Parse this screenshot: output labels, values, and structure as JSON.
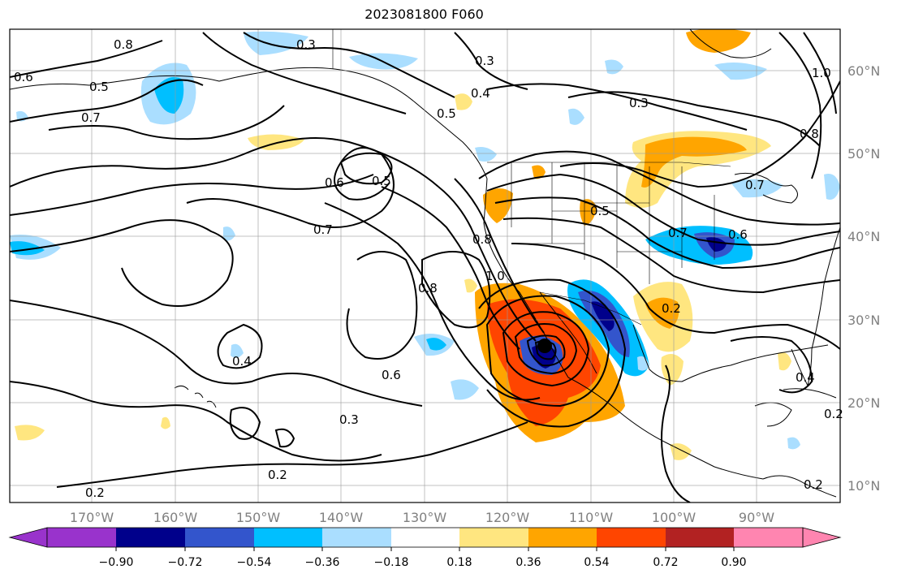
{
  "title": "2023081800 F060",
  "map": {
    "lon_range": [
      -180,
      -80
    ],
    "lat_range": [
      8,
      65
    ],
    "gridlines": true,
    "lon_ticks": [
      "170°W",
      "160°W",
      "150°W",
      "140°W",
      "130°W",
      "120°W",
      "110°W",
      "100°W",
      "90°W"
    ],
    "lat_ticks": [
      "60°N",
      "50°N",
      "40°N",
      "30°N",
      "20°N",
      "10°N"
    ],
    "storm_center_marker": {
      "lon": -115.5,
      "lat": 26.8
    },
    "contour_labels": [
      "0.8",
      "0.3",
      "0.6",
      "0.5",
      "0.7",
      "0.3",
      "0.4",
      "0.5",
      "0.3",
      "1.0",
      "0.8",
      "0.6",
      "0.5",
      "0.7",
      "0.5",
      "0.7",
      "0.7",
      "0.6",
      "0.8",
      "0.8",
      "1.0",
      "0.2",
      "0.4",
      "0.6",
      "0.3",
      "0.2",
      "0.2",
      "0.4",
      "0.2",
      "0.2"
    ]
  },
  "colorbar": {
    "tick_labels": [
      "−0.90",
      "−0.72",
      "−0.54",
      "−0.36",
      "−0.18",
      "0.18",
      "0.36",
      "0.54",
      "0.72",
      "0.90"
    ],
    "colors": [
      "#9933cc",
      "#00008b",
      "#3355cc",
      "#00bfff",
      "#aadeff",
      "#ffffff",
      "#ffe680",
      "#ffa500",
      "#ff4500",
      "#b22222",
      "#ff85b0"
    ],
    "extend": "both"
  }
}
